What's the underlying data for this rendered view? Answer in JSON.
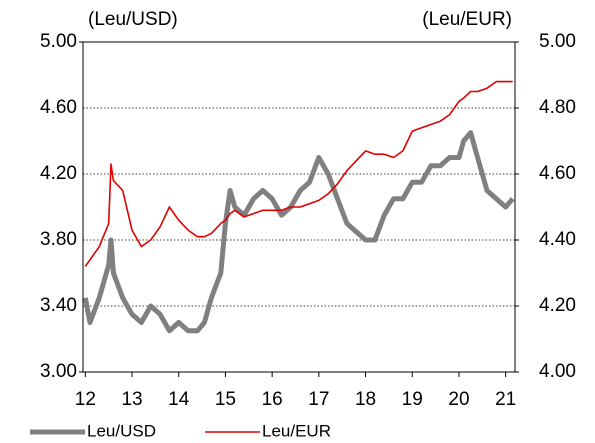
{
  "chart_data": {
    "type": "line",
    "y_label": "(Leu/USD)",
    "y2_label": "(Leu/EUR)",
    "x": [
      12.0,
      12.1,
      12.3,
      12.5,
      12.55,
      12.6,
      12.8,
      13.0,
      13.2,
      13.4,
      13.6,
      13.8,
      14.0,
      14.2,
      14.4,
      14.55,
      14.7,
      14.9,
      15.0,
      15.1,
      15.2,
      15.4,
      15.6,
      15.8,
      16.0,
      16.2,
      16.4,
      16.6,
      16.8,
      17.0,
      17.2,
      17.4,
      17.6,
      17.8,
      18.0,
      18.2,
      18.4,
      18.6,
      18.8,
      19.0,
      19.2,
      19.4,
      19.6,
      19.8,
      20.0,
      20.1,
      20.25,
      20.4,
      20.6,
      20.8,
      21.0,
      21.15
    ],
    "series": [
      {
        "name": "Leu/USD",
        "color": "#808080",
        "axis": "y",
        "values": [
          3.45,
          3.3,
          3.45,
          3.65,
          3.8,
          3.6,
          3.45,
          3.35,
          3.3,
          3.4,
          3.35,
          3.25,
          3.3,
          3.25,
          3.25,
          3.3,
          3.45,
          3.6,
          3.9,
          4.1,
          4.0,
          3.95,
          4.05,
          4.1,
          4.05,
          3.95,
          4.0,
          4.1,
          4.15,
          4.3,
          4.2,
          4.05,
          3.9,
          3.85,
          3.8,
          3.8,
          3.95,
          4.05,
          4.05,
          4.15,
          4.15,
          4.25,
          4.25,
          4.3,
          4.3,
          4.4,
          4.45,
          4.3,
          4.1,
          4.05,
          4.0,
          4.05
        ]
      },
      {
        "name": "Leu/EUR",
        "color": "#e00000",
        "axis": "y2",
        "values": [
          4.32,
          4.34,
          4.38,
          4.45,
          4.63,
          4.58,
          4.55,
          4.43,
          4.38,
          4.4,
          4.44,
          4.5,
          4.46,
          4.43,
          4.41,
          4.41,
          4.42,
          4.45,
          4.46,
          4.48,
          4.49,
          4.47,
          4.48,
          4.49,
          4.49,
          4.49,
          4.5,
          4.5,
          4.51,
          4.52,
          4.54,
          4.57,
          4.61,
          4.64,
          4.67,
          4.66,
          4.66,
          4.65,
          4.67,
          4.73,
          4.74,
          4.75,
          4.76,
          4.78,
          4.82,
          4.83,
          4.85,
          4.85,
          4.86,
          4.88,
          4.88,
          4.88
        ]
      }
    ],
    "xlim": [
      11.95,
      21.2
    ],
    "xticks": [
      12,
      13,
      14,
      15,
      16,
      17,
      18,
      19,
      20,
      21
    ],
    "ylim": [
      3,
      5
    ],
    "yticks": [
      {
        "value": 3,
        "label": "3.00"
      },
      {
        "value": 3.4,
        "label": "3.40"
      },
      {
        "value": 3.8,
        "label": "3.80"
      },
      {
        "value": 4.2,
        "label": "4.20"
      },
      {
        "value": 4.6,
        "label": "4.60"
      },
      {
        "value": 5,
        "label": "5.00"
      }
    ],
    "y2lim": [
      4,
      5
    ],
    "y2ticks": [
      {
        "value": 4,
        "label": "4.00"
      },
      {
        "value": 4.2,
        "label": "4.20"
      },
      {
        "value": 4.4,
        "label": "4.40"
      },
      {
        "value": 4.6,
        "label": "4.60"
      },
      {
        "value": 4.8,
        "label": "4.80"
      },
      {
        "value": 5,
        "label": "5.00"
      }
    ],
    "grid": true,
    "legend": "bottom"
  }
}
